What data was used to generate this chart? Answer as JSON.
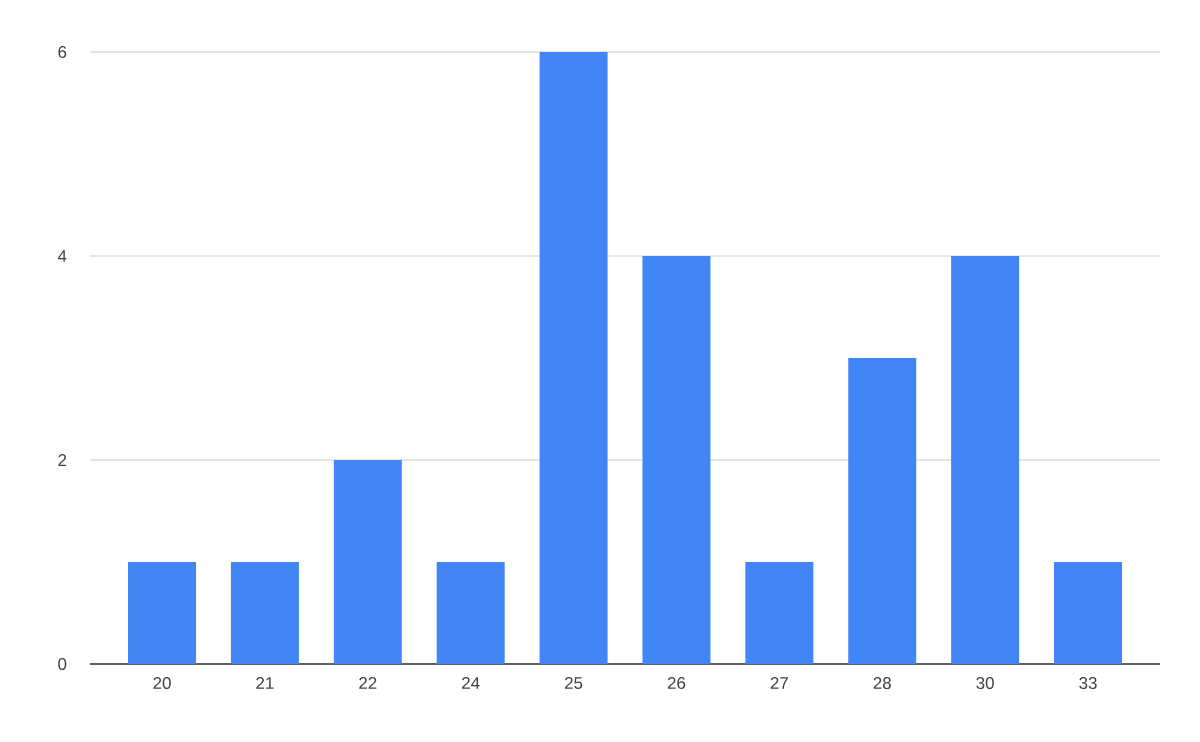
{
  "chart_data": {
    "type": "bar",
    "categories": [
      "20",
      "21",
      "22",
      "24",
      "25",
      "26",
      "27",
      "28",
      "30",
      "33"
    ],
    "values": [
      1,
      1,
      2,
      1,
      6,
      4,
      1,
      3,
      4,
      1
    ],
    "color": "#4285f4",
    "ylim": [
      0,
      6
    ],
    "yticks": [
      0,
      2,
      4,
      6
    ],
    "grid": "y"
  }
}
